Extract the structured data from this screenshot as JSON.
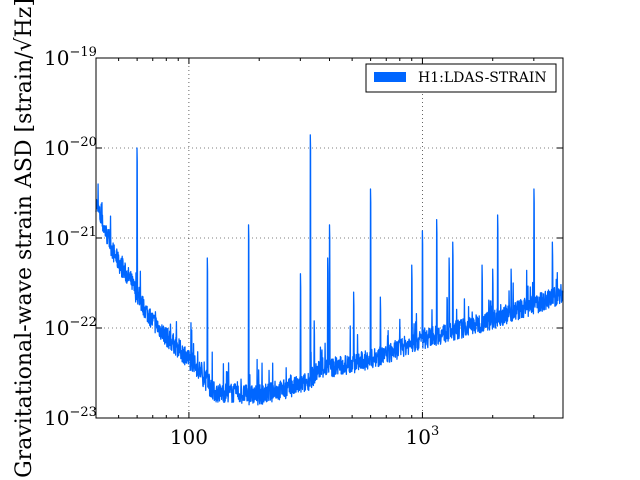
{
  "chart_data": {
    "type": "line",
    "title": "",
    "xlabel": "",
    "ylabel": "Gravitational-wave strain ASD [strain/√Hz]",
    "x_scale": "log",
    "y_scale": "log",
    "xlim": [
      40,
      4000
    ],
    "ylim": [
      1e-23,
      1e-19
    ],
    "grid": true,
    "legend_position": "top-right",
    "line_color": "#0066ff",
    "x_ticks": [
      {
        "value": 100,
        "base": "100",
        "exp": ""
      },
      {
        "value": 1000,
        "base": "10",
        "exp": "3"
      }
    ],
    "y_ticks": [
      {
        "value": 1e-23,
        "base": "10",
        "exp": "−23"
      },
      {
        "value": 1e-22,
        "base": "10",
        "exp": "−22"
      },
      {
        "value": 1e-21,
        "base": "10",
        "exp": "−21"
      },
      {
        "value": 1e-20,
        "base": "10",
        "exp": "−20"
      },
      {
        "value": 1e-19,
        "base": "10",
        "exp": "−19"
      }
    ],
    "series": [
      {
        "name": "H1:LDAS-STRAIN",
        "baseline": [
          {
            "x": 40,
            "y": 2.5e-21
          },
          {
            "x": 42,
            "y": 1.6e-21
          },
          {
            "x": 45,
            "y": 1e-21
          },
          {
            "x": 48,
            "y": 6.5e-22
          },
          {
            "x": 52,
            "y": 4.5e-22
          },
          {
            "x": 56,
            "y": 3.5e-22
          },
          {
            "x": 60,
            "y": 2.3e-22
          },
          {
            "x": 65,
            "y": 1.6e-22
          },
          {
            "x": 70,
            "y": 1.2e-22
          },
          {
            "x": 80,
            "y": 8e-23
          },
          {
            "x": 90,
            "y": 6e-23
          },
          {
            "x": 100,
            "y": 4.5e-23
          },
          {
            "x": 110,
            "y": 3.5e-23
          },
          {
            "x": 120,
            "y": 2.4e-23
          },
          {
            "x": 130,
            "y": 1.9e-23
          },
          {
            "x": 150,
            "y": 1.9e-23
          },
          {
            "x": 180,
            "y": 1.8e-23
          },
          {
            "x": 200,
            "y": 1.8e-23
          },
          {
            "x": 240,
            "y": 2e-23
          },
          {
            "x": 280,
            "y": 2.2e-23
          },
          {
            "x": 320,
            "y": 2.5e-23
          },
          {
            "x": 345,
            "y": 3e-23
          },
          {
            "x": 360,
            "y": 3.5e-23
          },
          {
            "x": 400,
            "y": 3.6e-23
          },
          {
            "x": 500,
            "y": 4e-23
          },
          {
            "x": 600,
            "y": 4.5e-23
          },
          {
            "x": 700,
            "y": 5e-23
          },
          {
            "x": 800,
            "y": 6e-23
          },
          {
            "x": 1000,
            "y": 7.5e-23
          },
          {
            "x": 1200,
            "y": 8.5e-23
          },
          {
            "x": 1500,
            "y": 1e-22
          },
          {
            "x": 2000,
            "y": 1.25e-22
          },
          {
            "x": 2500,
            "y": 1.55e-22
          },
          {
            "x": 3000,
            "y": 1.8e-22
          },
          {
            "x": 3500,
            "y": 2.1e-22
          },
          {
            "x": 4000,
            "y": 2.4e-22
          }
        ],
        "lines": [
          {
            "x": 46,
            "y": 1e-21
          },
          {
            "x": 50,
            "y": 6.5e-22
          },
          {
            "x": 60,
            "y": 1e-20
          },
          {
            "x": 120,
            "y": 6e-22
          },
          {
            "x": 180,
            "y": 1.4e-21
          },
          {
            "x": 300,
            "y": 4e-22
          },
          {
            "x": 331,
            "y": 1.4e-20
          },
          {
            "x": 344,
            "y": 1.2e-22
          },
          {
            "x": 393,
            "y": 6e-22
          },
          {
            "x": 400,
            "y": 1.4e-21
          },
          {
            "x": 508,
            "y": 2.5e-22
          },
          {
            "x": 600,
            "y": 3.5e-21
          },
          {
            "x": 660,
            "y": 2.2e-22
          },
          {
            "x": 900,
            "y": 5e-22
          },
          {
            "x": 1000,
            "y": 1.2e-21
          },
          {
            "x": 1150,
            "y": 1.6e-21
          },
          {
            "x": 1300,
            "y": 6e-22
          },
          {
            "x": 1350,
            "y": 9e-22
          },
          {
            "x": 1800,
            "y": 5e-22
          },
          {
            "x": 2000,
            "y": 4.5e-22
          },
          {
            "x": 2100,
            "y": 1.8e-21
          },
          {
            "x": 2400,
            "y": 4.5e-22
          },
          {
            "x": 3000,
            "y": 3.5e-21
          },
          {
            "x": 3600,
            "y": 9e-22
          }
        ]
      }
    ]
  }
}
